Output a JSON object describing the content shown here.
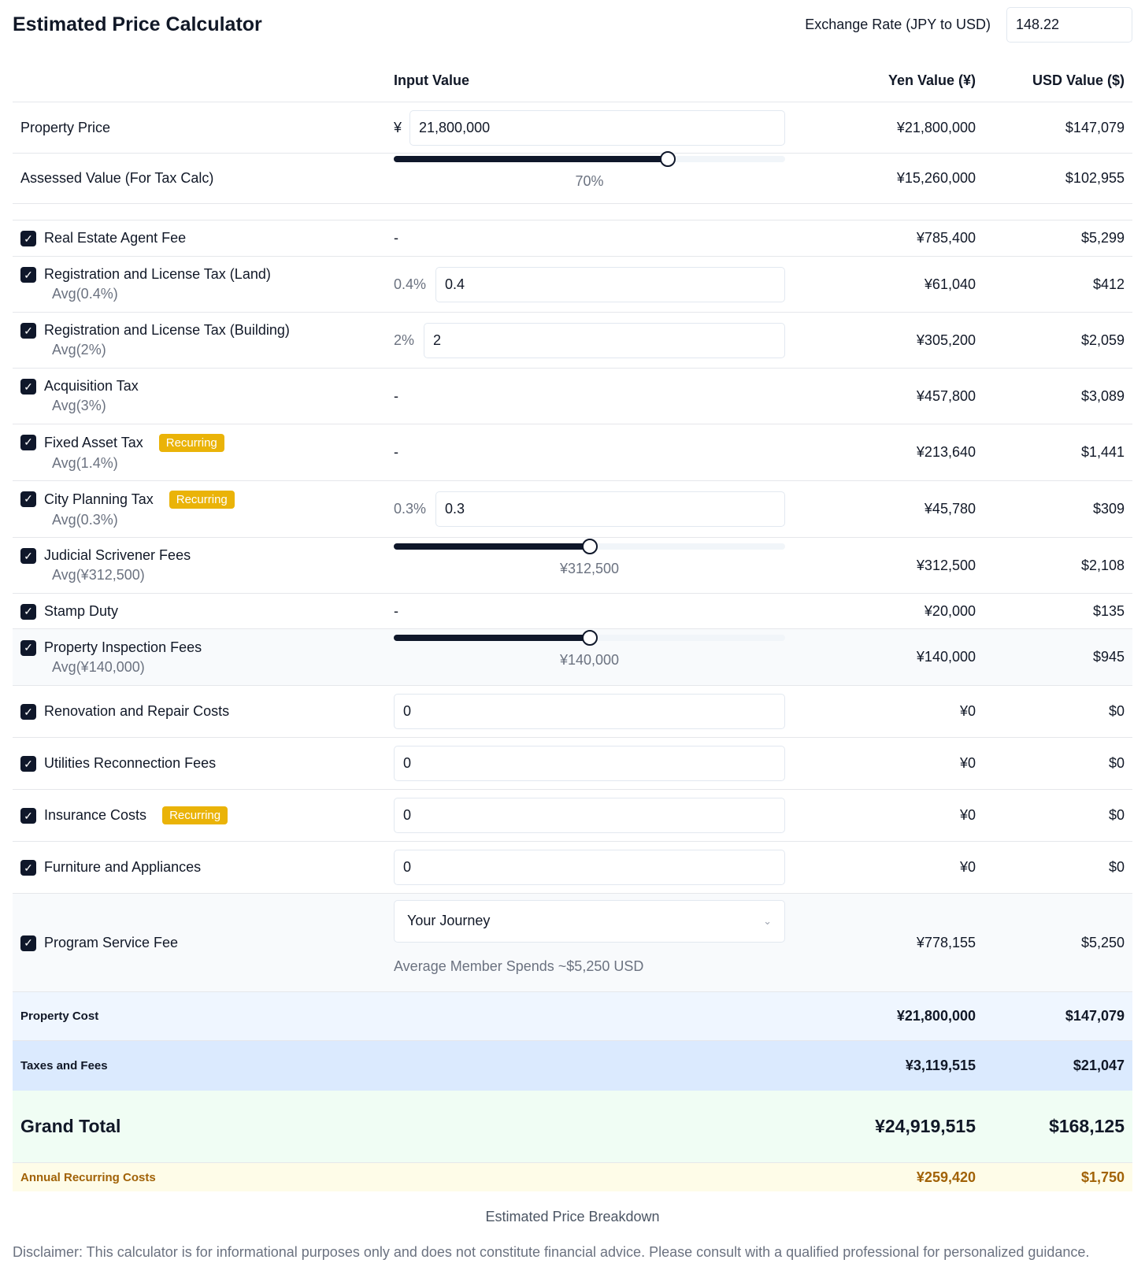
{
  "header": {
    "title": "Estimated Price Calculator",
    "exchange_label": "Exchange Rate (JPY to USD)",
    "exchange_value": "148.22"
  },
  "columns": {
    "input": "Input Value",
    "yen": "Yen Value (¥)",
    "usd": "USD Value ($)"
  },
  "property_price": {
    "label": "Property Price",
    "prefix": "¥",
    "value": "21,800,000",
    "yen": "¥21,800,000",
    "usd": "$147,079"
  },
  "assessed": {
    "label": "Assessed Value (For Tax Calc)",
    "percent": 70,
    "percent_label": "70%",
    "yen": "¥15,260,000",
    "usd": "$102,955"
  },
  "recurring_badge": "Recurring",
  "items": [
    {
      "label": "Real Estate Agent Fee",
      "input": "-",
      "yen": "¥785,400",
      "usd": "$5,299"
    },
    {
      "label": "Registration and License Tax (Land)",
      "avg": "Avg(0.4%)",
      "pct": "0.4%",
      "value": "0.4",
      "yen": "¥61,040",
      "usd": "$412"
    },
    {
      "label": "Registration and License Tax (Building)",
      "avg": "Avg(2%)",
      "pct": "2%",
      "value": "2",
      "yen": "¥305,200",
      "usd": "$2,059"
    },
    {
      "label": "Acquisition Tax",
      "avg": "Avg(3%)",
      "input": "-",
      "yen": "¥457,800",
      "usd": "$3,089"
    },
    {
      "label": "Fixed Asset Tax",
      "avg": "Avg(1.4%)",
      "input": "-",
      "yen": "¥213,640",
      "usd": "$1,441"
    },
    {
      "label": "City Planning Tax",
      "avg": "Avg(0.3%)",
      "pct": "0.3%",
      "value": "0.3",
      "yen": "¥45,780",
      "usd": "$309"
    },
    {
      "label": "Judicial Scrivener Fees",
      "avg": "Avg(¥312,500)",
      "slider": 50,
      "slider_label": "¥312,500",
      "yen": "¥312,500",
      "usd": "$2,108"
    },
    {
      "label": "Stamp Duty",
      "input": "-",
      "yen": "¥20,000",
      "usd": "$135"
    },
    {
      "label": "Property Inspection Fees",
      "avg": "Avg(¥140,000)",
      "slider": 50,
      "slider_label": "¥140,000",
      "yen": "¥140,000",
      "usd": "$945"
    },
    {
      "label": "Renovation and Repair Costs",
      "value": "0",
      "yen": "¥0",
      "usd": "$0"
    },
    {
      "label": "Utilities Reconnection Fees",
      "value": "0",
      "yen": "¥0",
      "usd": "$0"
    },
    {
      "label": "Insurance Costs",
      "value": "0",
      "yen": "¥0",
      "usd": "$0"
    },
    {
      "label": "Furniture and Appliances",
      "value": "0",
      "yen": "¥0",
      "usd": "$0"
    },
    {
      "label": "Program Service Fee",
      "select": "Your Journey",
      "note": "Average Member Spends ~$5,250 USD",
      "yen": "¥778,155",
      "usd": "$5,250"
    }
  ],
  "totals": {
    "property_cost": {
      "label": "Property Cost",
      "yen": "¥21,800,000",
      "usd": "$147,079"
    },
    "taxes": {
      "label": "Taxes and Fees",
      "yen": "¥3,119,515",
      "usd": "$21,047"
    },
    "grand": {
      "label": "Grand Total",
      "yen": "¥24,919,515",
      "usd": "$168,125"
    },
    "annual": {
      "label": "Annual Recurring Costs",
      "yen": "¥259,420",
      "usd": "$1,750"
    }
  },
  "caption": "Estimated Price Breakdown",
  "disclaimer": "Disclaimer: This calculator is for informational purposes only and does not constitute financial advice. Please consult with a qualified professional for personalized guidance.",
  "colors": {
    "badge": "#eab308",
    "annual_text": "#a16207",
    "property_bg": "#eff6ff",
    "taxes_bg": "#dbeafe",
    "grand_bg": "#f0fdf4",
    "annual_bg": "#fefce8"
  }
}
